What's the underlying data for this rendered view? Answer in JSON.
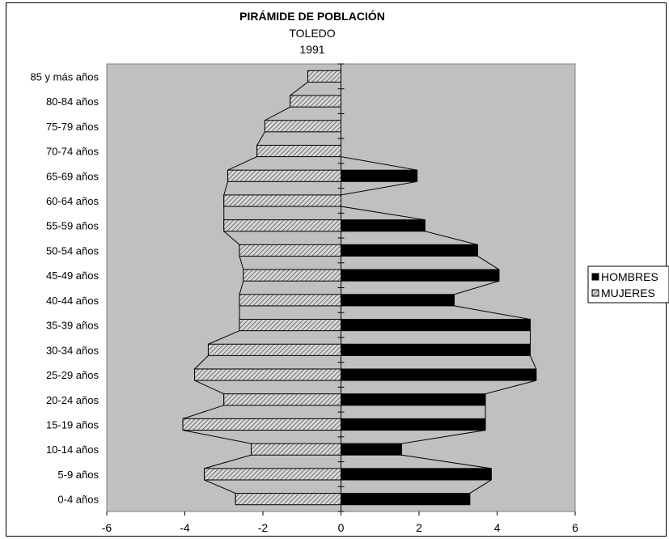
{
  "chart_data": {
    "type": "bar",
    "orientation": "horizontal",
    "title": "PIRÁMIDE DE POBLACIÓN",
    "subtitle": [
      "TOLEDO",
      "1991"
    ],
    "categories": [
      "0-4 años",
      "5-9 años",
      "10-14 años",
      "15-19 años",
      "20-24 años",
      "25-29 años",
      "30-34 años",
      "35-39 años",
      "40-44 años",
      "45-49 años",
      "50-54 años",
      "55-59 años",
      "60-64 años",
      "65-69 años",
      "70-74 años",
      "75-79 años",
      "80-84 años",
      "85 y más años"
    ],
    "series": [
      {
        "name": "HOMBRES",
        "color": "#000000",
        "values": [
          3.3,
          3.85,
          1.55,
          3.7,
          3.7,
          5.0,
          4.85,
          4.85,
          2.9,
          4.05,
          3.5,
          2.15,
          0,
          1.95,
          0,
          0,
          0,
          0
        ]
      },
      {
        "name": "MUJERES",
        "color": "#999999",
        "pattern": "hatched",
        "values": [
          -2.7,
          -3.5,
          -2.3,
          -4.05,
          -3.0,
          -3.75,
          -3.4,
          -2.6,
          -2.6,
          -2.5,
          -2.6,
          -3.0,
          -3.0,
          -2.9,
          -2.15,
          -1.95,
          -1.3,
          -0.85
        ]
      }
    ],
    "xlim": [
      -6,
      6
    ],
    "xticks": [
      "-6",
      "-4",
      "-2",
      "0",
      "2",
      "4",
      "6"
    ],
    "xlabel": "",
    "ylabel": "",
    "plot_background": "#c0c0c0",
    "grid": false,
    "legend": "right"
  }
}
